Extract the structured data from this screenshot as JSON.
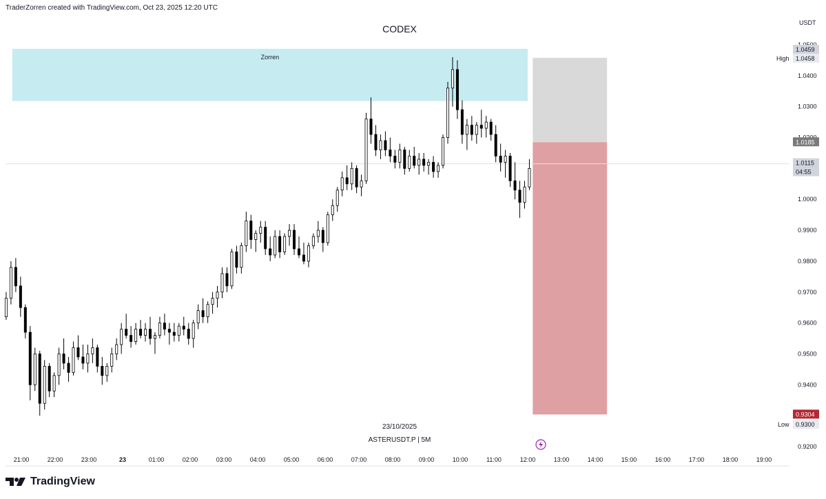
{
  "header": {
    "text": "TraderZorren created with TradingView.com, Oct 23, 2025 12:20 UTC"
  },
  "colors": {
    "zone_fill": "#c6ecf2",
    "target_fill": "#d9d9d9",
    "stop_fill": "#dfa0a3",
    "candle_up": "#ffffff",
    "candle_down": "#000000",
    "low_tag": "#b22833",
    "gray_tag": "#7a7a7a",
    "lightning": "#9c27b0"
  },
  "chart_data": {
    "type": "candlestick",
    "title": "CODEX",
    "zone_label": "Zorren",
    "currency": "USDT",
    "symbol": "ASTERUSDT.P | 5M",
    "date": "23/10/2025",
    "ylim": [
      0.915,
      1.057
    ],
    "y_ticks": [
      "1.0500",
      "1.0400",
      "1.0300",
      "1.0200",
      "1.0100",
      "1.0000",
      "0.9900",
      "0.9800",
      "0.9700",
      "0.9600",
      "0.9500",
      "0.9400",
      "0.9300",
      "0.9200"
    ],
    "y_tick_values": [
      1.05,
      1.04,
      1.03,
      1.02,
      1.01,
      1.0,
      0.99,
      0.98,
      0.97,
      0.96,
      0.95,
      0.94,
      0.93,
      0.92
    ],
    "x_labels": [
      "21:00",
      "22:00",
      "23:00",
      "23",
      "01:00",
      "02:00",
      "03:00",
      "04:00",
      "05:00",
      "06:00",
      "07:00",
      "08:00",
      "09:00",
      "10:00",
      "11:00",
      "12:00",
      "13:00",
      "14:00",
      "15:00",
      "16:00",
      "17:00",
      "18:00",
      "19:00"
    ],
    "x_label_hours": [
      0,
      1,
      2,
      3,
      4,
      5,
      6,
      7,
      8,
      9,
      10,
      11,
      12,
      13,
      14,
      15,
      16,
      17,
      18,
      19,
      20,
      21,
      22
    ],
    "zone": {
      "top": 1.0487,
      "bottom": 1.0318,
      "from_hour": -0.27,
      "to_hour": 15.0
    },
    "position": {
      "entry": 1.0185,
      "target": 1.0458,
      "stop": 0.9304,
      "from_hour": 15.15,
      "to_hour": 17.35
    },
    "price_tags": {
      "high_label": "High",
      "high": "1.0459",
      "high2": "1.0458",
      "entry": "1.0185",
      "last": "1.0115",
      "countdown": "04:55",
      "stop": "0.9304",
      "low_label": "Low",
      "low": "0.9300"
    },
    "last_price": 1.0115,
    "candles": [
      [
        0.962,
        0.97,
        0.961,
        0.968
      ],
      [
        0.968,
        0.98,
        0.966,
        0.978
      ],
      [
        0.978,
        0.981,
        0.97,
        0.972
      ],
      [
        0.972,
        0.975,
        0.962,
        0.965
      ],
      [
        0.965,
        0.966,
        0.955,
        0.957
      ],
      [
        0.957,
        0.959,
        0.935,
        0.94
      ],
      [
        0.94,
        0.952,
        0.938,
        0.95
      ],
      [
        0.95,
        0.951,
        0.93,
        0.934
      ],
      [
        0.934,
        0.948,
        0.932,
        0.946
      ],
      [
        0.946,
        0.947,
        0.936,
        0.938
      ],
      [
        0.938,
        0.944,
        0.936,
        0.943
      ],
      [
        0.943,
        0.952,
        0.94,
        0.95
      ],
      [
        0.95,
        0.955,
        0.945,
        0.947
      ],
      [
        0.947,
        0.949,
        0.941,
        0.944
      ],
      [
        0.944,
        0.954,
        0.943,
        0.952
      ],
      [
        0.952,
        0.956,
        0.948,
        0.949
      ],
      [
        0.949,
        0.953,
        0.945,
        0.947
      ],
      [
        0.947,
        0.953,
        0.944,
        0.95
      ],
      [
        0.95,
        0.955,
        0.947,
        0.952
      ],
      [
        0.952,
        0.953,
        0.944,
        0.946
      ],
      [
        0.946,
        0.949,
        0.94,
        0.943
      ],
      [
        0.943,
        0.947,
        0.941,
        0.946
      ],
      [
        0.946,
        0.952,
        0.944,
        0.95
      ],
      [
        0.95,
        0.955,
        0.948,
        0.953
      ],
      [
        0.953,
        0.96,
        0.95,
        0.958
      ],
      [
        0.958,
        0.963,
        0.955,
        0.956
      ],
      [
        0.956,
        0.959,
        0.952,
        0.954
      ],
      [
        0.954,
        0.96,
        0.953,
        0.958
      ],
      [
        0.958,
        0.961,
        0.955,
        0.956
      ],
      [
        0.956,
        0.96,
        0.954,
        0.958
      ],
      [
        0.958,
        0.962,
        0.953,
        0.955
      ],
      [
        0.955,
        0.957,
        0.95,
        0.956
      ],
      [
        0.956,
        0.962,
        0.955,
        0.96
      ],
      [
        0.96,
        0.963,
        0.956,
        0.958
      ],
      [
        0.958,
        0.96,
        0.953,
        0.957
      ],
      [
        0.957,
        0.96,
        0.954,
        0.956
      ],
      [
        0.956,
        0.96,
        0.954,
        0.959
      ],
      [
        0.959,
        0.962,
        0.956,
        0.958
      ],
      [
        0.958,
        0.96,
        0.953,
        0.955
      ],
      [
        0.955,
        0.961,
        0.952,
        0.96
      ],
      [
        0.96,
        0.966,
        0.958,
        0.964
      ],
      [
        0.964,
        0.968,
        0.96,
        0.962
      ],
      [
        0.962,
        0.967,
        0.96,
        0.966
      ],
      [
        0.966,
        0.97,
        0.963,
        0.968
      ],
      [
        0.968,
        0.972,
        0.965,
        0.97
      ],
      [
        0.97,
        0.978,
        0.968,
        0.976
      ],
      [
        0.976,
        0.978,
        0.97,
        0.972
      ],
      [
        0.972,
        0.984,
        0.971,
        0.983
      ],
      [
        0.983,
        0.985,
        0.976,
        0.978
      ],
      [
        0.978,
        0.986,
        0.976,
        0.985
      ],
      [
        0.985,
        0.996,
        0.983,
        0.993
      ],
      [
        0.993,
        0.995,
        0.984,
        0.987
      ],
      [
        0.987,
        0.99,
        0.983,
        0.989
      ],
      [
        0.989,
        0.993,
        0.986,
        0.991
      ],
      [
        0.991,
        0.993,
        0.982,
        0.984
      ],
      [
        0.984,
        0.988,
        0.98,
        0.982
      ],
      [
        0.982,
        0.99,
        0.981,
        0.988
      ],
      [
        0.988,
        0.99,
        0.981,
        0.983
      ],
      [
        0.983,
        0.989,
        0.982,
        0.988
      ],
      [
        0.988,
        0.992,
        0.985,
        0.99
      ],
      [
        0.99,
        0.992,
        0.982,
        0.984
      ],
      [
        0.984,
        0.988,
        0.981,
        0.982
      ],
      [
        0.982,
        0.986,
        0.979,
        0.98
      ],
      [
        0.98,
        0.986,
        0.978,
        0.985
      ],
      [
        0.985,
        0.989,
        0.984,
        0.988
      ],
      [
        0.988,
        0.993,
        0.986,
        0.99
      ],
      [
        0.99,
        0.991,
        0.983,
        0.986
      ],
      [
        0.986,
        0.996,
        0.985,
        0.995
      ],
      [
        0.995,
        1.0,
        0.993,
        0.998
      ],
      [
        0.998,
        1.004,
        0.996,
        1.003
      ],
      [
        1.003,
        1.009,
        1.001,
        1.007
      ],
      [
        1.007,
        1.011,
        1.003,
        1.005
      ],
      [
        1.005,
        1.012,
        1.003,
        1.01
      ],
      [
        1.01,
        1.011,
        1.002,
        1.004
      ],
      [
        1.004,
        1.008,
        1.001,
        1.006
      ],
      [
        1.006,
        1.028,
        1.005,
        1.026
      ],
      [
        1.026,
        1.033,
        1.018,
        1.021
      ],
      [
        1.021,
        1.024,
        1.014,
        1.016
      ],
      [
        1.016,
        1.021,
        1.013,
        1.019
      ],
      [
        1.019,
        1.022,
        1.014,
        1.016
      ],
      [
        1.016,
        1.02,
        1.012,
        1.014
      ],
      [
        1.014,
        1.016,
        1.01,
        1.012
      ],
      [
        1.012,
        1.018,
        1.01,
        1.016
      ],
      [
        1.016,
        1.017,
        1.008,
        1.01
      ],
      [
        1.01,
        1.016,
        1.009,
        1.014
      ],
      [
        1.014,
        1.017,
        1.01,
        1.011
      ],
      [
        1.011,
        1.015,
        1.008,
        1.013
      ],
      [
        1.013,
        1.015,
        1.009,
        1.011
      ],
      [
        1.011,
        1.013,
        1.008,
        1.012
      ],
      [
        1.012,
        1.014,
        1.007,
        1.009
      ],
      [
        1.009,
        1.012,
        1.007,
        1.011
      ],
      [
        1.011,
        1.021,
        1.01,
        1.02
      ],
      [
        1.02,
        1.038,
        1.018,
        1.036
      ],
      [
        1.036,
        1.046,
        1.03,
        1.042
      ],
      [
        1.042,
        1.045,
        1.026,
        1.029
      ],
      [
        1.029,
        1.032,
        1.018,
        1.021
      ],
      [
        1.021,
        1.026,
        1.016,
        1.024
      ],
      [
        1.024,
        1.027,
        1.019,
        1.021
      ],
      [
        1.021,
        1.025,
        1.018,
        1.024
      ],
      [
        1.024,
        1.029,
        1.02,
        1.023
      ],
      [
        1.023,
        1.027,
        1.02,
        1.025
      ],
      [
        1.025,
        1.026,
        1.019,
        1.021
      ],
      [
        1.021,
        1.024,
        1.012,
        1.014
      ],
      [
        1.014,
        1.018,
        1.009,
        1.012
      ],
      [
        1.012,
        1.016,
        1.007,
        1.014
      ],
      [
        1.014,
        1.015,
        1.004,
        1.006
      ],
      [
        1.006,
        1.012,
        1.0,
        1.003
      ],
      [
        1.003,
        1.006,
        0.994,
        0.999
      ],
      [
        0.999,
        1.006,
        0.997,
        1.004
      ],
      [
        1.004,
        1.013,
        1.003,
        1.01
      ]
    ]
  }
}
